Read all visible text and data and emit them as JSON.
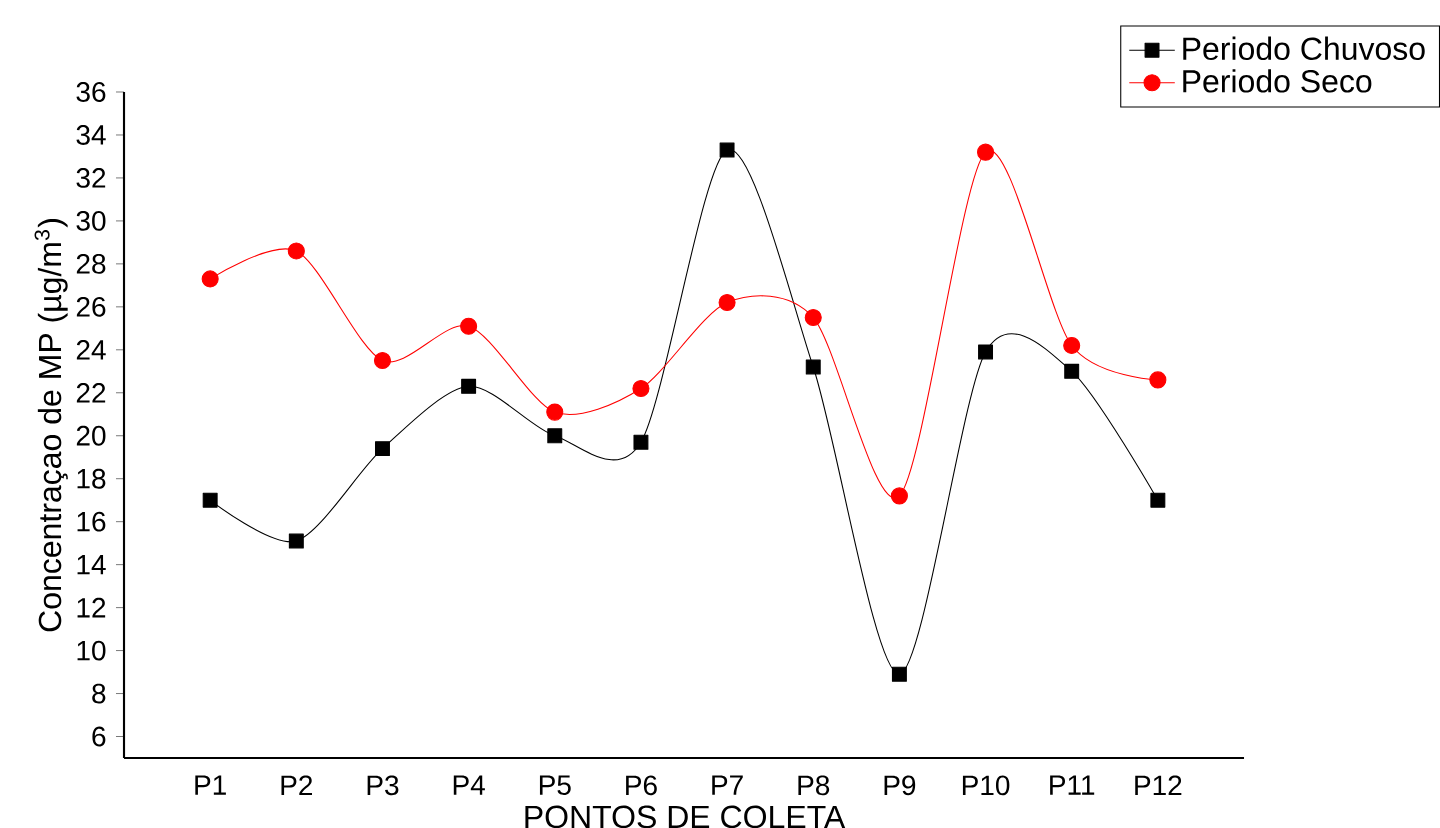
{
  "chart_data": {
    "type": "line",
    "xlabel": "PONTOS DE COLETA",
    "ylabel": "Concentraçao de MP (µg/m$^{3}$)",
    "categories": [
      "P1",
      "P2",
      "P3",
      "P4",
      "P5",
      "P6",
      "P7",
      "P8",
      "P9",
      "P10",
      "P11",
      "P12"
    ],
    "series": [
      {
        "name": "Periodo Chuvoso",
        "color": "#000000",
        "marker": "square",
        "values": [
          17.0,
          15.1,
          19.4,
          22.3,
          20.0,
          19.7,
          33.3,
          23.2,
          8.9,
          23.9,
          23.0,
          17.0
        ]
      },
      {
        "name": "Periodo Seco",
        "color": "#ff0000",
        "marker": "circle",
        "values": [
          27.3,
          28.6,
          23.5,
          25.1,
          21.1,
          22.2,
          26.2,
          25.5,
          17.2,
          33.2,
          24.2,
          22.6
        ]
      }
    ],
    "ylim": [
      5,
      36
    ],
    "yticks": [
      6,
      8,
      10,
      12,
      14,
      16,
      18,
      20,
      22,
      24,
      26,
      28,
      30,
      32,
      34,
      36
    ],
    "grid": false,
    "legend": "top right",
    "line_style": "solid"
  }
}
